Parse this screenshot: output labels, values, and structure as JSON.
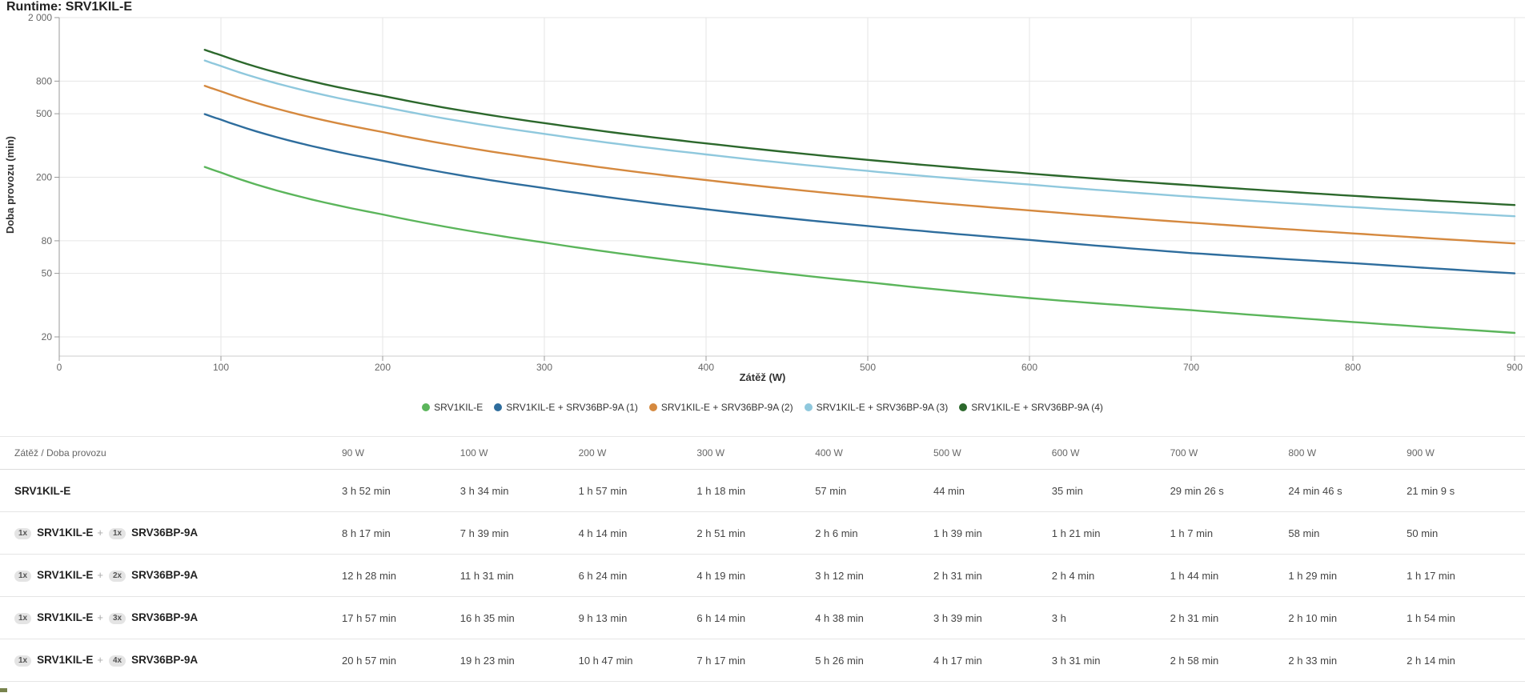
{
  "page": {
    "title": "Runtime: SRV1KIL-E"
  },
  "chart_data": {
    "type": "line",
    "title": "Runtime: SRV1KIL-E",
    "xlabel": "Zátěž (W)",
    "ylabel": "Doba provozu (min)",
    "grid": true,
    "legend_position": "bottom",
    "x_axis": {
      "min": 0,
      "max": 900,
      "ticks": [
        0,
        100,
        200,
        300,
        400,
        500,
        600,
        700,
        800,
        900
      ]
    },
    "y_axis": {
      "scale": "log",
      "min": 20,
      "max": 2000,
      "ticks": [
        2000,
        800,
        500,
        200,
        80,
        50,
        20
      ],
      "tick_labels": [
        "2 000",
        "800",
        "500",
        "200",
        "80",
        "50",
        "20"
      ]
    },
    "clipped_left_label": "0",
    "x": [
      90,
      100,
      200,
      300,
      400,
      500,
      600,
      700,
      800,
      900
    ],
    "series": [
      {
        "name": "SRV1KIL-E",
        "color": "#5bb55b",
        "values_min": [
          232,
          214,
          117,
          78,
          57,
          44,
          35,
          29.4,
          24.8,
          21.2
        ]
      },
      {
        "name": "SRV1KIL-E + SRV36BP-9A (1)",
        "color": "#2e6d9d",
        "values_min": [
          497,
          459,
          254,
          171,
          126,
          99,
          81,
          67,
          58,
          50
        ]
      },
      {
        "name": "SRV1KIL-E + SRV36BP-9A (2)",
        "color": "#d5893f",
        "values_min": [
          748,
          691,
          384,
          259,
          192,
          151,
          124,
          104,
          89,
          77
        ]
      },
      {
        "name": "SRV1KIL-E + SRV36BP-9A (3)",
        "color": "#8fc8dd",
        "values_min": [
          1077,
          995,
          553,
          374,
          278,
          219,
          180,
          151,
          130,
          114
        ]
      },
      {
        "name": "SRV1KIL-E + SRV36BP-9A (4)",
        "color": "#2c682c",
        "values_min": [
          1257,
          1163,
          647,
          437,
          326,
          257,
          211,
          178,
          153,
          134
        ]
      }
    ]
  },
  "table": {
    "header": [
      "Zátěž / Doba provozu",
      "90 W",
      "100 W",
      "200 W",
      "300 W",
      "400 W",
      "500 W",
      "600 W",
      "700 W",
      "800 W",
      "900 W"
    ],
    "rows": [
      {
        "name1": "SRV1KIL-E",
        "values": [
          "3 h 52 min",
          "3 h 34 min",
          "1 h 57 min",
          "1 h 18 min",
          "57 min",
          "44 min",
          "35 min",
          "29 min 26 s",
          "24 min 46 s",
          "21 min 9 s"
        ]
      },
      {
        "badge1": "1x",
        "name1": "SRV1KIL-E",
        "badge2": "1x",
        "name2": "SRV36BP-9A",
        "values": [
          "8 h 17 min",
          "7 h 39 min",
          "4 h 14 min",
          "2 h 51 min",
          "2 h 6 min",
          "1 h 39 min",
          "1 h 21 min",
          "1 h 7 min",
          "58 min",
          "50 min"
        ]
      },
      {
        "badge1": "1x",
        "name1": "SRV1KIL-E",
        "badge2": "2x",
        "name2": "SRV36BP-9A",
        "values": [
          "12 h 28 min",
          "11 h 31 min",
          "6 h 24 min",
          "4 h 19 min",
          "3 h 12 min",
          "2 h 31 min",
          "2 h 4 min",
          "1 h 44 min",
          "1 h 29 min",
          "1 h 17 min"
        ]
      },
      {
        "badge1": "1x",
        "name1": "SRV1KIL-E",
        "badge2": "3x",
        "name2": "SRV36BP-9A",
        "values": [
          "17 h 57 min",
          "16 h 35 min",
          "9 h 13 min",
          "6 h 14 min",
          "4 h 38 min",
          "3 h 39 min",
          "3 h",
          "2 h 31 min",
          "2 h 10 min",
          "1 h 54 min"
        ]
      },
      {
        "badge1": "1x",
        "name1": "SRV1KIL-E",
        "badge2": "4x",
        "name2": "SRV36BP-9A",
        "values": [
          "20 h 57 min",
          "19 h 23 min",
          "10 h 47 min",
          "7 h 17 min",
          "5 h 26 min",
          "4 h 17 min",
          "3 h 31 min",
          "2 h 58 min",
          "2 h 33 min",
          "2 h 14 min"
        ]
      }
    ]
  }
}
